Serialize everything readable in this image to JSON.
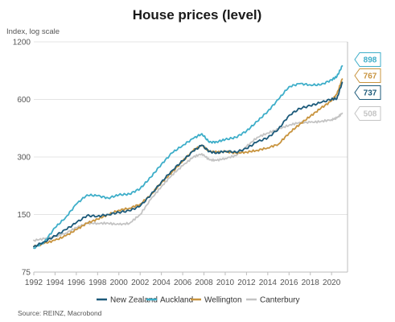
{
  "chart_data": {
    "type": "line",
    "title": "House prices (level)",
    "ylabel": "Index, log scale",
    "y_scale": "log",
    "ylim": [
      75,
      1200
    ],
    "xlim": [
      1992,
      2021.5
    ],
    "yticks": [
      75,
      150,
      300,
      600,
      1200
    ],
    "xticks": [
      1992,
      1994,
      1996,
      1998,
      2000,
      2002,
      2004,
      2006,
      2008,
      2010,
      2012,
      2014,
      2016,
      2018,
      2020
    ],
    "grid": "horizontal",
    "legend_position": "bottom",
    "source": "Source: REINZ, Macrobond",
    "series": [
      {
        "name": "New Zealand",
        "color": "#1c5a7a",
        "end_label": "737",
        "points": [
          [
            1992,
            102
          ],
          [
            1993,
            108
          ],
          [
            1994,
            116
          ],
          [
            1995,
            125
          ],
          [
            1996,
            136
          ],
          [
            1997,
            148
          ],
          [
            1998,
            147
          ],
          [
            1999,
            150
          ],
          [
            2000,
            154
          ],
          [
            2001,
            157
          ],
          [
            2002,
            166
          ],
          [
            2003,
            190
          ],
          [
            2004,
            222
          ],
          [
            2005,
            255
          ],
          [
            2006,
            287
          ],
          [
            2007,
            322
          ],
          [
            2007.8,
            346
          ],
          [
            2008.5,
            320
          ],
          [
            2009.2,
            315
          ],
          [
            2010,
            322
          ],
          [
            2011,
            318
          ],
          [
            2012,
            332
          ],
          [
            2013,
            360
          ],
          [
            2014,
            378
          ],
          [
            2015,
            420
          ],
          [
            2016,
            495
          ],
          [
            2017,
            538
          ],
          [
            2018,
            556
          ],
          [
            2019,
            578
          ],
          [
            2020,
            602
          ],
          [
            2020.5,
            606
          ],
          [
            2021,
            737
          ]
        ]
      },
      {
        "name": "Auckland",
        "color": "#3eaec9",
        "end_label": "898",
        "points": [
          [
            1992,
            100
          ],
          [
            1993,
            108
          ],
          [
            1994,
            128
          ],
          [
            1995,
            145
          ],
          [
            1996,
            170
          ],
          [
            1997,
            190
          ],
          [
            1998,
            188
          ],
          [
            1999,
            183
          ],
          [
            2000,
            190
          ],
          [
            2001,
            192
          ],
          [
            2002,
            205
          ],
          [
            2003,
            235
          ],
          [
            2004,
            275
          ],
          [
            2005,
            315
          ],
          [
            2006,
            345
          ],
          [
            2007,
            375
          ],
          [
            2007.8,
            397
          ],
          [
            2008.5,
            358
          ],
          [
            2009.2,
            360
          ],
          [
            2010,
            370
          ],
          [
            2011,
            380
          ],
          [
            2012,
            410
          ],
          [
            2013,
            460
          ],
          [
            2014,
            520
          ],
          [
            2015,
            600
          ],
          [
            2016,
            700
          ],
          [
            2017,
            725
          ],
          [
            2018,
            715
          ],
          [
            2019,
            715
          ],
          [
            2020,
            760
          ],
          [
            2020.5,
            790
          ],
          [
            2021,
            898
          ]
        ]
      },
      {
        "name": "Wellington",
        "color": "#c8943f",
        "end_label": "767",
        "points": [
          [
            1992,
            102
          ],
          [
            1993,
            106
          ],
          [
            1994,
            110
          ],
          [
            1995,
            116
          ],
          [
            1996,
            125
          ],
          [
            1997,
            135
          ],
          [
            1998,
            142
          ],
          [
            1999,
            150
          ],
          [
            2000,
            158
          ],
          [
            2001,
            162
          ],
          [
            2002,
            170
          ],
          [
            2003,
            190
          ],
          [
            2004,
            220
          ],
          [
            2005,
            250
          ],
          [
            2006,
            285
          ],
          [
            2007,
            325
          ],
          [
            2007.8,
            345
          ],
          [
            2008.5,
            320
          ],
          [
            2009.2,
            318
          ],
          [
            2010,
            320
          ],
          [
            2011,
            315
          ],
          [
            2012,
            318
          ],
          [
            2013,
            325
          ],
          [
            2014,
            335
          ],
          [
            2015,
            350
          ],
          [
            2016,
            400
          ],
          [
            2017,
            445
          ],
          [
            2018,
            490
          ],
          [
            2019,
            540
          ],
          [
            2020,
            590
          ],
          [
            2020.5,
            640
          ],
          [
            2021,
            767
          ]
        ]
      },
      {
        "name": "Canterbury",
        "color": "#c4c4c4",
        "end_label": "508",
        "points": [
          [
            1992,
            110
          ],
          [
            1993,
            112
          ],
          [
            1994,
            115
          ],
          [
            1995,
            120
          ],
          [
            1996,
            128
          ],
          [
            1997,
            135
          ],
          [
            1998,
            135
          ],
          [
            1999,
            135
          ],
          [
            2000,
            133
          ],
          [
            2001,
            135
          ],
          [
            2002,
            150
          ],
          [
            2003,
            180
          ],
          [
            2004,
            210
          ],
          [
            2005,
            242
          ],
          [
            2006,
            270
          ],
          [
            2007,
            300
          ],
          [
            2007.8,
            312
          ],
          [
            2008.5,
            290
          ],
          [
            2009.2,
            288
          ],
          [
            2010,
            295
          ],
          [
            2011,
            305
          ],
          [
            2012,
            340
          ],
          [
            2013,
            380
          ],
          [
            2014,
            400
          ],
          [
            2015,
            420
          ],
          [
            2016,
            440
          ],
          [
            2017,
            455
          ],
          [
            2018,
            455
          ],
          [
            2019,
            460
          ],
          [
            2020,
            470
          ],
          [
            2020.5,
            480
          ],
          [
            2021,
            508
          ]
        ]
      }
    ]
  }
}
